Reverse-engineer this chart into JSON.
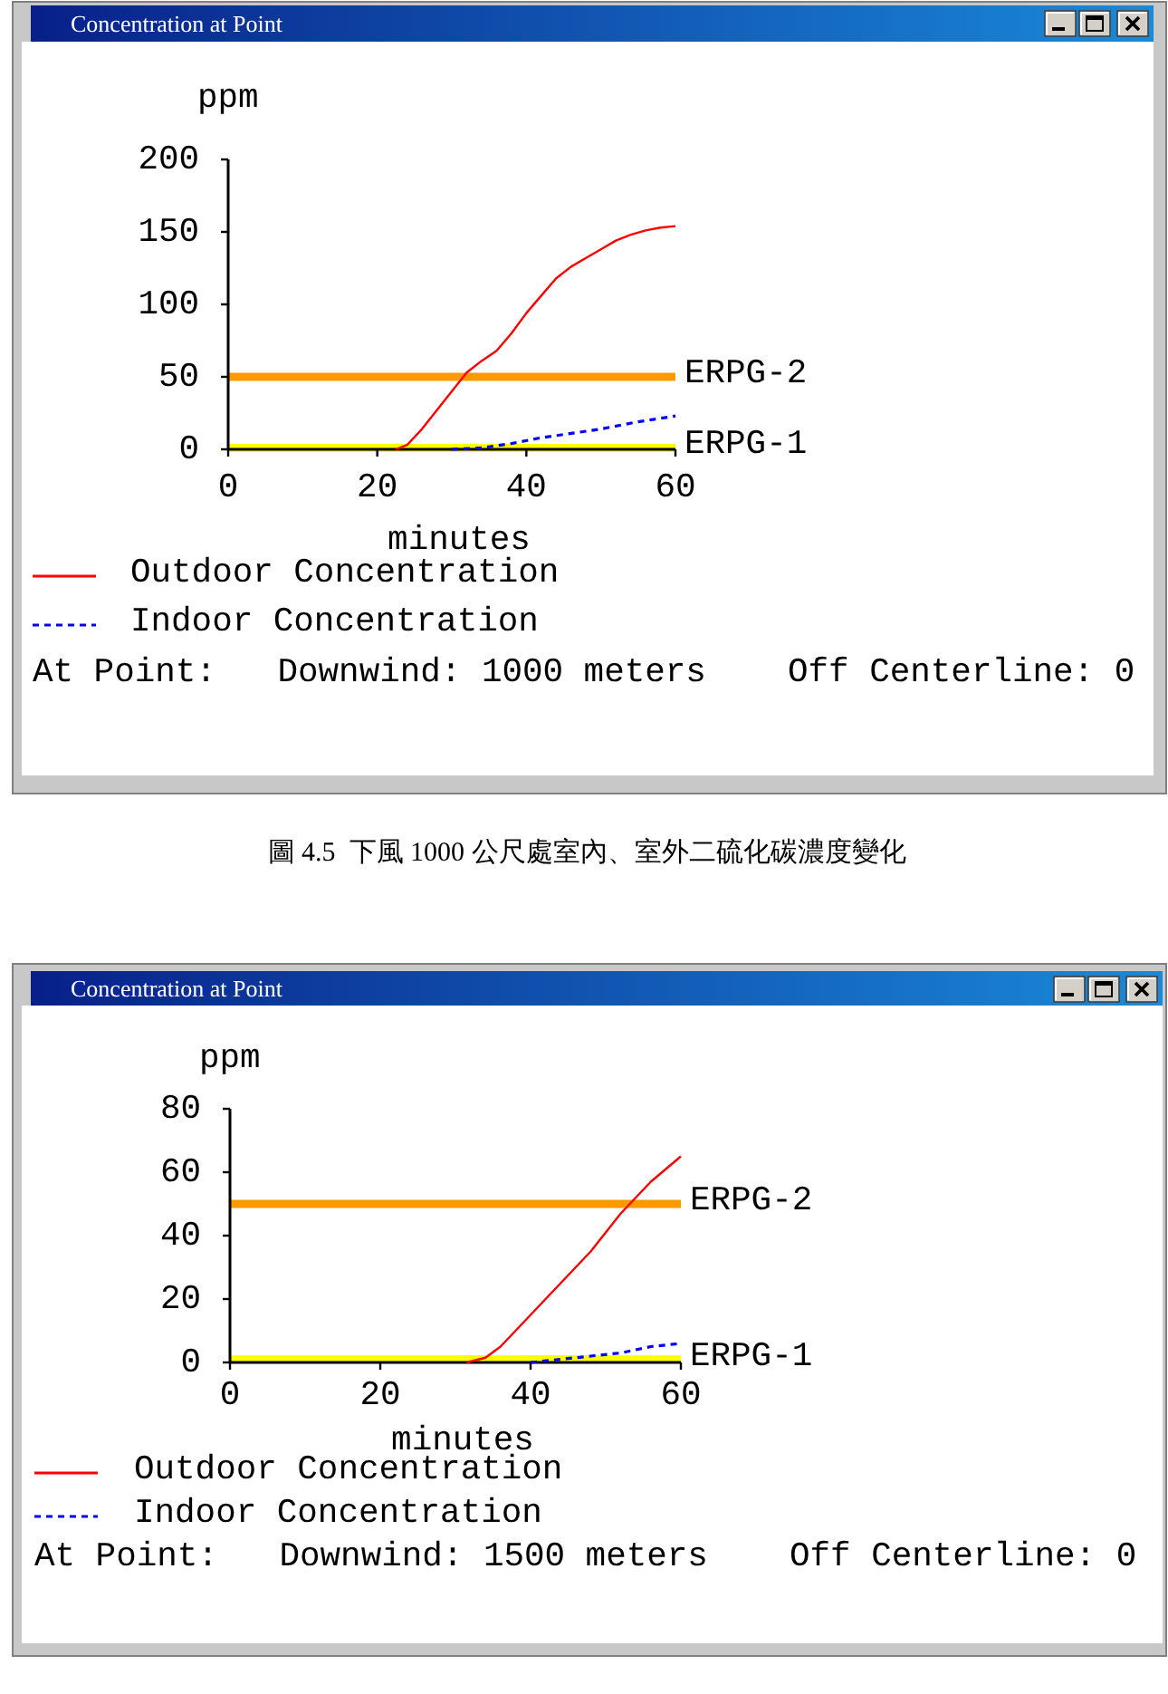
{
  "chart_data": [
    {
      "type": "line",
      "title": "Concentration at Point",
      "xlabel": "minutes",
      "ylabel": "ppm",
      "xlim": [
        0,
        60
      ],
      "xticks": [
        0,
        20,
        40,
        60
      ],
      "ylim": [
        0,
        200
      ],
      "yticks": [
        0,
        50,
        100,
        150,
        200
      ],
      "legend": "bottom left",
      "series": [
        {
          "name": "Outdoor Concentration",
          "color": "#ff0000",
          "line_style": "solid",
          "x": [
            22.5,
            24,
            26,
            28,
            30,
            32,
            34,
            36,
            38,
            40,
            42,
            44,
            46,
            48,
            50,
            52,
            54,
            56,
            58,
            60
          ],
          "values": [
            0,
            3,
            14,
            27,
            40,
            53,
            61,
            68,
            80,
            94,
            106,
            118,
            126,
            132,
            138,
            144,
            148,
            151,
            153,
            154
          ]
        },
        {
          "name": "Indoor Concentration",
          "color": "#0000ff",
          "line_style": "dashed",
          "x": [
            30,
            34,
            38,
            42,
            46,
            50,
            55,
            60
          ],
          "values": [
            0,
            1,
            4,
            8,
            11,
            14,
            19,
            23
          ]
        }
      ],
      "ref_lines": [
        {
          "axis": "y",
          "value": 50,
          "label": "ERPG-2",
          "color": "#ff9900"
        },
        {
          "axis": "y",
          "value": 1,
          "label": "ERPG-1",
          "color": "#ffff00"
        }
      ],
      "annotations": [
        "At Point:   Downwind: 1000 meters    Off Centerline: 0",
        "圖 4.5  下風 1000 公尺處室內、室外二硫化碳濃度變化"
      ]
    },
    {
      "type": "line",
      "title": "Concentration at Point",
      "xlabel": "minutes",
      "ylabel": "ppm",
      "xlim": [
        0,
        60
      ],
      "xticks": [
        0,
        20,
        40,
        60
      ],
      "ylim": [
        0,
        80
      ],
      "yticks": [
        0,
        20,
        40,
        60,
        80
      ],
      "legend": "bottom left",
      "series": [
        {
          "name": "Outdoor Concentration",
          "color": "#ff0000",
          "line_style": "solid",
          "x": [
            31.5,
            34,
            36,
            38,
            40,
            42,
            44,
            46,
            48,
            50,
            52,
            54,
            56,
            58,
            60
          ],
          "values": [
            0,
            1.5,
            5,
            10,
            15,
            20,
            25,
            30,
            35,
            41,
            47,
            52,
            57,
            61,
            65
          ]
        },
        {
          "name": "Indoor Concentration",
          "color": "#0000ff",
          "line_style": "dashed",
          "x": [
            40,
            44,
            48,
            52,
            56,
            60
          ],
          "values": [
            0,
            1,
            2,
            3,
            5,
            6
          ]
        }
      ],
      "ref_lines": [
        {
          "axis": "y",
          "value": 50,
          "label": "ERPG-2",
          "color": "#ff9900"
        },
        {
          "axis": "y",
          "value": 1,
          "label": "ERPG-1",
          "color": "#ffff00"
        }
      ],
      "annotations": [
        "At Point:   Downwind: 1500 meters    Off Centerline: 0"
      ]
    }
  ]
}
